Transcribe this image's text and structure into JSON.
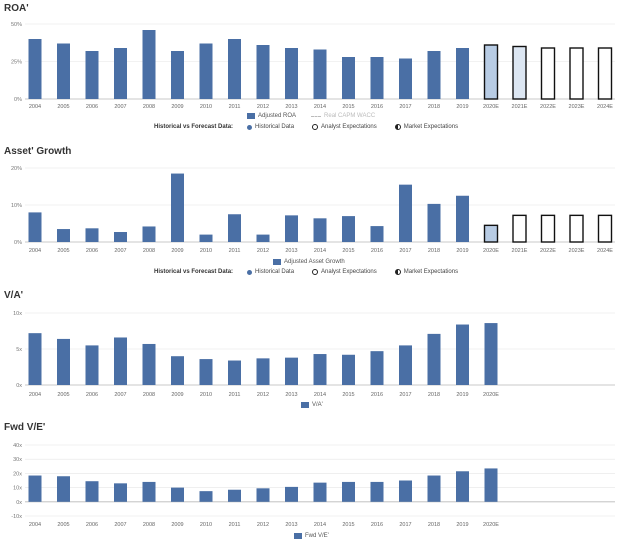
{
  "chart_data": [
    {
      "type": "bar",
      "title": "ROA'",
      "categories": [
        "2004",
        "2005",
        "2006",
        "2007",
        "2008",
        "2009",
        "2010",
        "2011",
        "2012",
        "2013",
        "2014",
        "2015",
        "2016",
        "2017",
        "2018",
        "2019",
        "2020E",
        "2021E",
        "2022E",
        "2023E",
        "2024E"
      ],
      "series": [
        {
          "name": "Adjusted ROA",
          "values": [
            40,
            37,
            32,
            34,
            46,
            32,
            37,
            40,
            36,
            34,
            33,
            28,
            28,
            27,
            32,
            34,
            36,
            35,
            34,
            34,
            34
          ]
        }
      ],
      "ytick_labels": [
        "0%",
        "25%",
        "50%"
      ],
      "ylim": [
        0,
        50
      ],
      "legend": [
        "Adjusted ROA",
        "Real CAPM WACC"
      ],
      "hv_title": "Historical vs Forecast Data:",
      "hv_items": [
        "Historical Data",
        "Analyst Expectations",
        "Market Expectations"
      ],
      "bar_styles": [
        "h",
        "h",
        "h",
        "h",
        "h",
        "h",
        "h",
        "h",
        "h",
        "h",
        "h",
        "h",
        "h",
        "h",
        "h",
        "h",
        "a",
        "m",
        "o",
        "o",
        "o"
      ]
    },
    {
      "type": "bar",
      "title": "Asset' Growth",
      "categories": [
        "2004",
        "2005",
        "2006",
        "2007",
        "2008",
        "2009",
        "2010",
        "2011",
        "2012",
        "2013",
        "2014",
        "2015",
        "2016",
        "2017",
        "2018",
        "2019",
        "2020E",
        "2021E",
        "2022E",
        "2023E",
        "2024E"
      ],
      "series": [
        {
          "name": "Adjusted Asset Growth",
          "values": [
            8,
            3.5,
            3.7,
            2.7,
            4.2,
            18.5,
            2,
            7.5,
            2,
            7.2,
            6.4,
            7,
            4.3,
            15.5,
            10.3,
            12.5,
            4.5,
            7.2,
            7.2,
            7.2,
            7.2
          ]
        }
      ],
      "ytick_labels": [
        "0%",
        "10%",
        "20%"
      ],
      "ylim": [
        0,
        20
      ],
      "legend": [
        "Adjusted Asset Growth"
      ],
      "hv_title": "Historical vs Forecast Data:",
      "hv_items": [
        "Historical Data",
        "Analyst Expectations",
        "Market Expectations"
      ],
      "bar_styles": [
        "h",
        "h",
        "h",
        "h",
        "h",
        "h",
        "h",
        "h",
        "h",
        "h",
        "h",
        "h",
        "h",
        "h",
        "h",
        "h",
        "a",
        "o",
        "o",
        "o",
        "o"
      ]
    },
    {
      "type": "bar",
      "title": "V/A'",
      "categories": [
        "2004",
        "2005",
        "2006",
        "2007",
        "2008",
        "2009",
        "2010",
        "2011",
        "2012",
        "2013",
        "2014",
        "2015",
        "2016",
        "2017",
        "2018",
        "2019",
        "2020E"
      ],
      "series": [
        {
          "name": "V/A'",
          "values": [
            7.2,
            6.4,
            5.5,
            6.6,
            5.7,
            4,
            3.6,
            3.4,
            3.7,
            3.8,
            4.3,
            4.2,
            4.7,
            5.5,
            7.1,
            8.4,
            8.6
          ]
        }
      ],
      "ytick_labels": [
        "0x",
        "5x",
        "10x"
      ],
      "ylim": [
        0,
        10
      ],
      "legend": [
        "V/A'"
      ]
    },
    {
      "type": "bar",
      "title": "Fwd V/E'",
      "categories": [
        "2004",
        "2005",
        "2006",
        "2007",
        "2008",
        "2009",
        "2010",
        "2011",
        "2012",
        "2013",
        "2014",
        "2015",
        "2016",
        "2017",
        "2018",
        "2019",
        "2020E"
      ],
      "series": [
        {
          "name": "Fwd V/E'",
          "values": [
            18.5,
            18,
            14.5,
            13,
            14,
            10,
            7.5,
            8.5,
            9.5,
            10.5,
            13.5,
            14,
            14,
            15,
            18.5,
            21.5,
            23.5
          ]
        }
      ],
      "ytick_labels": [
        "-10x",
        "0x",
        "10x",
        "20x",
        "30x",
        "40x"
      ],
      "ylim": [
        -10,
        40
      ],
      "legend": [
        "Fwd V/E'"
      ]
    }
  ]
}
